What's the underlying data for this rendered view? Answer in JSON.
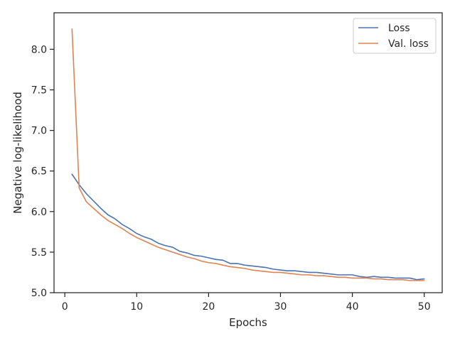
{
  "chart_data": {
    "type": "line",
    "xlabel": "Epochs",
    "ylabel": "Negative log-likelihood",
    "xlim": [
      -1.5,
      52.5
    ],
    "ylim": [
      5.0,
      8.45
    ],
    "xticks": [
      0,
      10,
      20,
      30,
      40,
      50
    ],
    "xtick_labels": [
      "0",
      "10",
      "20",
      "30",
      "40",
      "50"
    ],
    "yticks": [
      5.0,
      5.5,
      6.0,
      6.5,
      7.0,
      7.5,
      8.0
    ],
    "ytick_labels": [
      "5.0",
      "5.5",
      "6.0",
      "6.5",
      "7.0",
      "7.5",
      "8.0"
    ],
    "grid": false,
    "legend_position": "top-right",
    "series": [
      {
        "name": "Loss",
        "color": "#4c72b0",
        "x": [
          1,
          2,
          3,
          4,
          5,
          6,
          7,
          8,
          9,
          10,
          11,
          12,
          13,
          14,
          15,
          16,
          17,
          18,
          19,
          20,
          21,
          22,
          23,
          24,
          25,
          26,
          27,
          28,
          29,
          30,
          31,
          32,
          33,
          34,
          35,
          36,
          37,
          38,
          39,
          40,
          41,
          42,
          43,
          44,
          45,
          46,
          47,
          48,
          49,
          50
        ],
        "y": [
          6.46,
          6.33,
          6.22,
          6.13,
          6.04,
          5.96,
          5.91,
          5.84,
          5.79,
          5.73,
          5.69,
          5.66,
          5.61,
          5.58,
          5.56,
          5.51,
          5.49,
          5.46,
          5.45,
          5.43,
          5.41,
          5.4,
          5.36,
          5.36,
          5.34,
          5.33,
          5.32,
          5.31,
          5.29,
          5.28,
          5.27,
          5.27,
          5.26,
          5.25,
          5.25,
          5.24,
          5.23,
          5.22,
          5.22,
          5.22,
          5.2,
          5.19,
          5.2,
          5.19,
          5.19,
          5.18,
          5.18,
          5.18,
          5.16,
          5.17
        ]
      },
      {
        "name": "Val. loss",
        "color": "#dd8452",
        "x": [
          1,
          2,
          3,
          4,
          5,
          6,
          7,
          8,
          9,
          10,
          11,
          12,
          13,
          14,
          15,
          16,
          17,
          18,
          19,
          20,
          21,
          22,
          23,
          24,
          25,
          26,
          27,
          28,
          29,
          30,
          31,
          32,
          33,
          34,
          35,
          36,
          37,
          38,
          39,
          40,
          41,
          42,
          43,
          44,
          45,
          46,
          47,
          48,
          49,
          50
        ],
        "y": [
          8.25,
          6.29,
          6.12,
          6.04,
          5.96,
          5.89,
          5.84,
          5.79,
          5.73,
          5.68,
          5.64,
          5.6,
          5.56,
          5.53,
          5.5,
          5.47,
          5.44,
          5.42,
          5.39,
          5.37,
          5.36,
          5.34,
          5.32,
          5.31,
          5.3,
          5.28,
          5.27,
          5.26,
          5.25,
          5.25,
          5.24,
          5.23,
          5.22,
          5.22,
          5.21,
          5.21,
          5.2,
          5.19,
          5.19,
          5.18,
          5.18,
          5.18,
          5.17,
          5.17,
          5.16,
          5.16,
          5.16,
          5.15,
          5.15,
          5.15
        ]
      }
    ]
  }
}
